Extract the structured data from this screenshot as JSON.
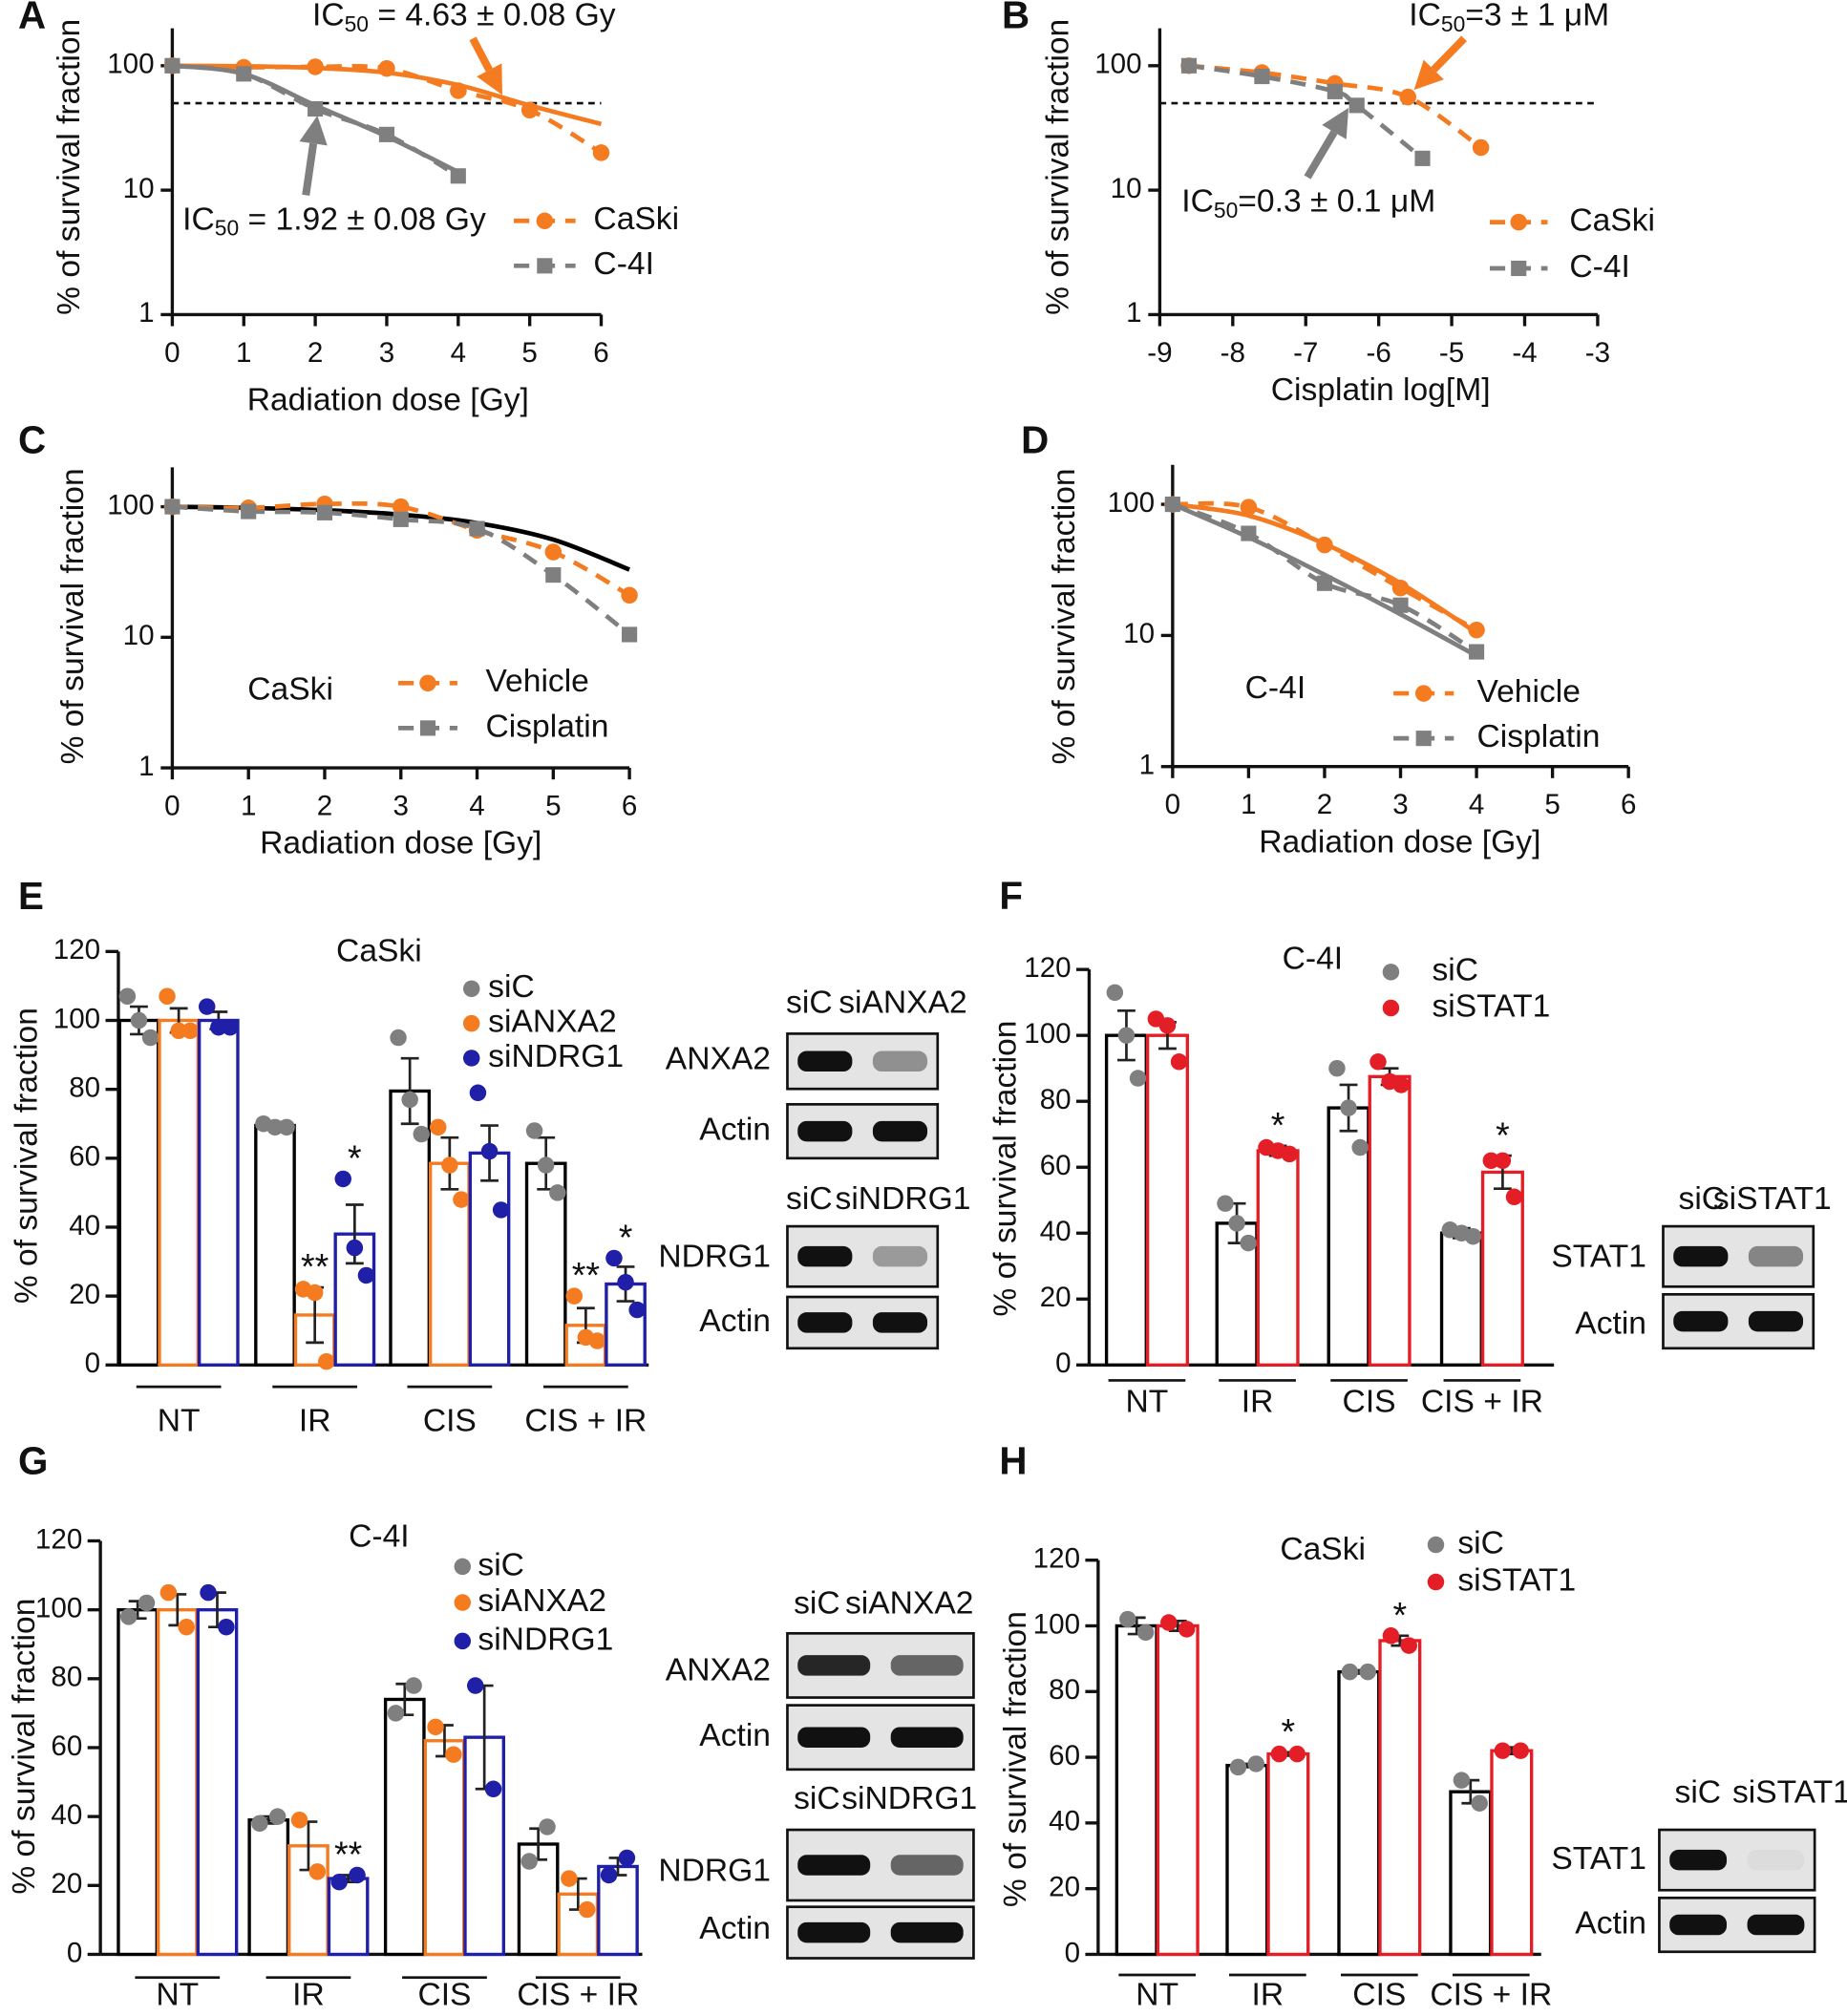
{
  "chart_data": [
    {
      "type": "line",
      "panel": "A",
      "ylabel": "% of survival fraction",
      "xlabel": "Radiation dose [Gy]",
      "xlim": [
        0,
        6
      ],
      "xticks": [
        0,
        1,
        2,
        3,
        4,
        5,
        6
      ],
      "ylim": [
        1,
        200
      ],
      "yticks": [
        1,
        10,
        100
      ],
      "log_y": true,
      "hline": 50,
      "series": [
        {
          "name": "CaSki",
          "color": "#f47b20",
          "marker": "circle",
          "x": [
            0,
            1,
            2,
            3,
            4,
            5,
            6
          ],
          "values": [
            100,
            97,
            98,
            95,
            63,
            44,
            20
          ]
        },
        {
          "name": "C-4I",
          "color": "#7f7f7f",
          "marker": "square",
          "x": [
            0,
            1,
            2,
            3,
            4
          ],
          "values": [
            100,
            86,
            45,
            28,
            13
          ]
        }
      ],
      "fits": [
        {
          "color": "#f47b20",
          "x": [
            0,
            1,
            2,
            3,
            4,
            5,
            6
          ],
          "values": [
            100,
            99,
            96,
            88,
            70,
            48,
            34
          ]
        },
        {
          "color": "#7f7f7f",
          "x": [
            0,
            1,
            2,
            3,
            4
          ],
          "values": [
            100,
            86,
            48,
            27,
            14
          ]
        }
      ],
      "annotations": [
        {
          "prefix": "IC",
          "subscript": "50",
          "suffix": " = 4.63 ± 0.08 Gy"
        },
        {
          "prefix": "IC",
          "subscript": "50",
          "suffix": " = 1.92 ± 0.08 Gy"
        }
      ]
    },
    {
      "type": "line",
      "panel": "B",
      "ylabel": "% of survival fraction",
      "xlabel": "Cisplatin log[M]",
      "xlim": [
        -9,
        -3
      ],
      "xticks": [
        -9,
        -8,
        -7,
        -6,
        -5,
        -4,
        -3
      ],
      "ylim": [
        1,
        200
      ],
      "yticks": [
        1,
        10,
        100
      ],
      "log_y": true,
      "hline": 50,
      "series": [
        {
          "name": "CaSki",
          "color": "#f47b20",
          "marker": "circle",
          "x": [
            -8.6,
            -7.6,
            -6.6,
            -5.6,
            -4.6
          ],
          "values": [
            100,
            88,
            72,
            56,
            22
          ]
        },
        {
          "name": "C-4I",
          "color": "#7f7f7f",
          "marker": "square",
          "x": [
            -8.6,
            -7.6,
            -6.6,
            -6.3,
            -5.4
          ],
          "values": [
            100,
            82,
            62,
            48,
            18
          ]
        }
      ],
      "annotations": [
        {
          "prefix": "IC",
          "subscript": "50",
          "suffix": "=3 ± 1 μM"
        },
        {
          "prefix": "IC",
          "subscript": "50",
          "suffix": "=0.3 ± 0.1 μM"
        }
      ]
    },
    {
      "type": "line",
      "panel": "C",
      "ylabel": "% of survival fraction",
      "xlabel": "Radiation dose [Gy]",
      "label": "CaSki",
      "xlim": [
        0,
        6
      ],
      "xticks": [
        0,
        1,
        2,
        3,
        4,
        5,
        6
      ],
      "ylim": [
        1,
        200
      ],
      "yticks": [
        1,
        10,
        100
      ],
      "log_y": true,
      "series": [
        {
          "name": "Vehicle",
          "color": "#f47b20",
          "marker": "circle",
          "x": [
            0,
            1,
            2,
            3,
            4,
            5,
            6
          ],
          "values": [
            100,
            98,
            105,
            100,
            66,
            45,
            21
          ]
        },
        {
          "name": "Cisplatin",
          "color": "#7f7f7f",
          "marker": "square",
          "x": [
            0,
            1,
            2,
            3,
            4,
            5,
            6
          ],
          "values": [
            100,
            92,
            90,
            80,
            68,
            30,
            10.5
          ]
        }
      ],
      "fits": [
        {
          "color": "#000000",
          "x": [
            0,
            1,
            2,
            3,
            4,
            5,
            6
          ],
          "values": [
            100,
            98,
            94,
            87,
            75,
            56,
            33
          ]
        }
      ]
    },
    {
      "type": "line",
      "panel": "D",
      "ylabel": "% of survival fraction",
      "xlabel": "Radiation dose [Gy]",
      "label": "C-4I",
      "xlim": [
        0,
        6
      ],
      "xticks": [
        0,
        1,
        2,
        3,
        4,
        5,
        6
      ],
      "ylim": [
        1,
        200
      ],
      "yticks": [
        1,
        10,
        100
      ],
      "log_y": true,
      "series": [
        {
          "name": "Vehicle",
          "color": "#f47b20",
          "marker": "circle",
          "x": [
            0,
            1,
            2,
            3,
            4
          ],
          "values": [
            100,
            95,
            49,
            23,
            11
          ]
        },
        {
          "name": "Cisplatin",
          "color": "#7f7f7f",
          "marker": "square",
          "x": [
            0,
            1,
            2,
            3,
            4
          ],
          "values": [
            100,
            60,
            25,
            17,
            7.5
          ]
        }
      ],
      "fits": [
        {
          "color": "#f47b20",
          "x": [
            0,
            1,
            2,
            3,
            4
          ],
          "values": [
            100,
            82,
            50,
            25,
            10.5
          ]
        },
        {
          "color": "#7f7f7f",
          "x": [
            0,
            1,
            2,
            3,
            4
          ],
          "values": [
            100,
            56,
            29,
            14.5,
            7
          ]
        }
      ]
    },
    {
      "type": "bar",
      "panel": "E",
      "ylabel": "% of survival fraction",
      "label": "CaSki",
      "categories": [
        "NT",
        "IR",
        "CIS",
        "CIS + IR"
      ],
      "ylim": [
        0,
        120
      ],
      "yticks": [
        0,
        20,
        40,
        60,
        80,
        100,
        120
      ],
      "series": [
        {
          "name": "siC",
          "color": "#000000",
          "point_color": "#7f7f7f",
          "values": [
            100,
            69.5,
            79.5,
            58.5
          ],
          "errors": [
            4,
            1,
            9.5,
            7.5
          ],
          "points": [
            [
              107,
              100,
              95
            ],
            [
              70,
              69,
              69
            ],
            [
              95,
              77,
              67
            ],
            [
              68,
              58,
              50
            ]
          ],
          "significance": [
            null,
            null,
            null,
            null
          ]
        },
        {
          "name": "siANXA2",
          "color": "#f47b20",
          "point_color": "#f47b20",
          "values": [
            100,
            14.5,
            58.5,
            11.5
          ],
          "errors": [
            3.5,
            8,
            7.5,
            5
          ],
          "points": [
            [
              107,
              97,
              97
            ],
            [
              22,
              21,
              1
            ],
            [
              69,
              58,
              48
            ],
            [
              20,
              8,
              7
            ]
          ],
          "significance": [
            null,
            "**",
            null,
            "**"
          ]
        },
        {
          "name": "siNDRG1",
          "color": "#1f1fa8",
          "point_color": "#1f1fa8",
          "values": [
            100,
            38,
            61.5,
            23.5
          ],
          "errors": [
            2.5,
            8.5,
            8,
            5
          ],
          "points": [
            [
              104,
              98,
              98
            ],
            [
              54,
              34,
              26
            ],
            [
              79,
              62,
              45
            ],
            [
              31,
              24,
              16
            ]
          ],
          "significance": [
            null,
            "*",
            null,
            "*"
          ]
        }
      ],
      "blots": [
        {
          "lanes": [
            "siC",
            "siANXA2"
          ],
          "rows": [
            "ANXA2",
            "Actin"
          ]
        },
        {
          "lanes": [
            "siC",
            "siNDRG1"
          ],
          "rows": [
            "NDRG1",
            "Actin"
          ]
        }
      ]
    },
    {
      "type": "bar",
      "panel": "F",
      "ylabel": "% of survival fraction",
      "label": "C-4I",
      "categories": [
        "NT",
        "IR",
        "CIS",
        "CIS + IR"
      ],
      "ylim": [
        0,
        120
      ],
      "yticks": [
        0,
        20,
        40,
        60,
        80,
        100,
        120
      ],
      "series": [
        {
          "name": "siC",
          "color": "#000000",
          "point_color": "#7f7f7f",
          "values": [
            100,
            43,
            78,
            40
          ],
          "errors": [
            7.5,
            6,
            7,
            1.5
          ],
          "points": [
            [
              113,
              100,
              87
            ],
            [
              49,
              43,
              37
            ],
            [
              90,
              78,
              66
            ],
            [
              41,
              40,
              39
            ]
          ],
          "significance": [
            null,
            null,
            null,
            null
          ]
        },
        {
          "name": "siSTAT1",
          "color": "#e41e26",
          "point_color": "#e41e26",
          "values": [
            100,
            65,
            87.5,
            58.5
          ],
          "errors": [
            4,
            1.5,
            2.5,
            5
          ],
          "points": [
            [
              105,
              103,
              92
            ],
            [
              66,
              65,
              64
            ],
            [
              92,
              86,
              85
            ],
            [
              62,
              62,
              51
            ]
          ],
          "significance": [
            null,
            "*",
            null,
            "*"
          ]
        }
      ],
      "blots": [
        {
          "lanes": [
            "siC",
            "siSTAT1"
          ],
          "rows": [
            "STAT1",
            "Actin"
          ]
        }
      ]
    },
    {
      "type": "bar",
      "panel": "G",
      "ylabel": "% of survival fraction",
      "label": "C-4I",
      "categories": [
        "NT",
        "IR",
        "CIS",
        "CIS + IR"
      ],
      "ylim": [
        0,
        120
      ],
      "yticks": [
        0,
        20,
        40,
        60,
        80,
        100,
        120
      ],
      "series": [
        {
          "name": "siC",
          "color": "#000000",
          "point_color": "#7f7f7f",
          "values": [
            100,
            39,
            74,
            32
          ],
          "errors": [
            2.5,
            1,
            4.5,
            4.5
          ],
          "points": [
            [
              98,
              102
            ],
            [
              38,
              40
            ],
            [
              70,
              78
            ],
            [
              27,
              37
            ]
          ],
          "significance": [
            null,
            null,
            null,
            null
          ]
        },
        {
          "name": "siANXA2",
          "color": "#f47b20",
          "point_color": "#f47b20",
          "values": [
            100,
            31.5,
            62,
            17.5
          ],
          "errors": [
            4.5,
            7,
            4.5,
            4.5
          ],
          "points": [
            [
              105,
              95
            ],
            [
              39,
              24
            ],
            [
              66,
              58
            ],
            [
              22,
              13
            ]
          ],
          "significance": [
            null,
            null,
            null,
            null
          ]
        },
        {
          "name": "siNDRG1",
          "color": "#1f1fa8",
          "point_color": "#1f1fa8",
          "values": [
            100,
            22,
            63,
            25.5
          ],
          "errors": [
            5,
            1,
            15,
            2.5
          ],
          "points": [
            [
              105,
              95
            ],
            [
              21,
              23
            ],
            [
              78,
              48
            ],
            [
              23,
              28
            ]
          ],
          "significance": [
            null,
            "**",
            null,
            null
          ]
        }
      ],
      "blots": [
        {
          "lanes": [
            "siC",
            "siANXA2"
          ],
          "rows": [
            "ANXA2",
            "Actin"
          ]
        },
        {
          "lanes": [
            "siC",
            "siNDRG1"
          ],
          "rows": [
            "NDRG1",
            "Actin"
          ]
        }
      ]
    },
    {
      "type": "bar",
      "panel": "H",
      "ylabel": "% of survival fraction",
      "label": "CaSki",
      "categories": [
        "NT",
        "IR",
        "CIS",
        "CIS + IR"
      ],
      "ylim": [
        0,
        120
      ],
      "yticks": [
        0,
        20,
        40,
        60,
        80,
        100,
        120
      ],
      "series": [
        {
          "name": "siC",
          "color": "#000000",
          "point_color": "#7f7f7f",
          "values": [
            100,
            57.5,
            86,
            49.5
          ],
          "errors": [
            2.5,
            0.5,
            0.5,
            3.5
          ],
          "points": [
            [
              102,
              98
            ],
            [
              57,
              58
            ],
            [
              86,
              86
            ],
            [
              53,
              46
            ]
          ],
          "significance": [
            null,
            null,
            null,
            null
          ]
        },
        {
          "name": "siSTAT1",
          "color": "#e41e26",
          "point_color": "#e41e26",
          "values": [
            100,
            61,
            95.5,
            62
          ],
          "errors": [
            1.5,
            0.5,
            1.5,
            1
          ],
          "points": [
            [
              101,
              99
            ],
            [
              61,
              61
            ],
            [
              97,
              94
            ],
            [
              62,
              62
            ]
          ],
          "significance": [
            null,
            "*",
            "*",
            null
          ]
        }
      ],
      "blots": [
        {
          "lanes": [
            "siC",
            "siSTAT1"
          ],
          "rows": [
            "STAT1",
            "Actin"
          ]
        }
      ]
    }
  ]
}
